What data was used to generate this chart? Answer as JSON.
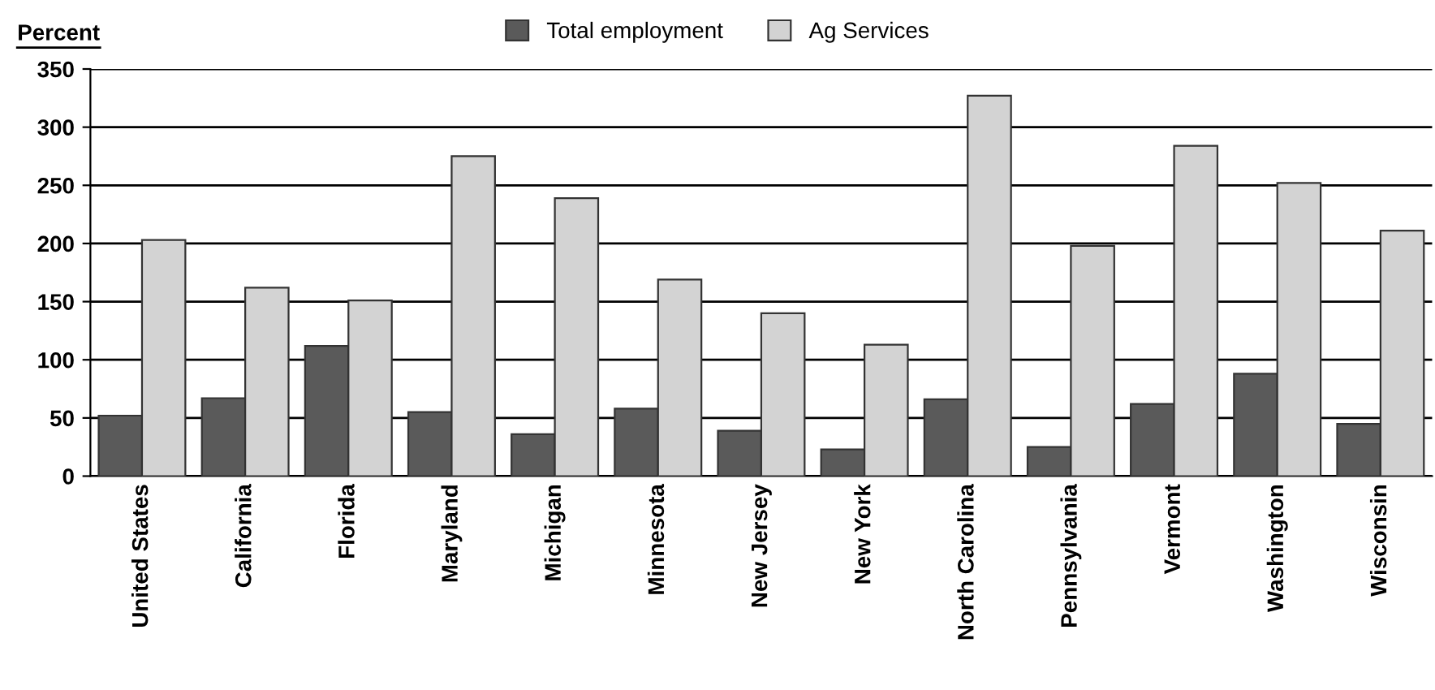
{
  "chart_data": {
    "type": "bar",
    "ylabel": "Percent",
    "categories": [
      "United States",
      "California",
      "Florida",
      "Maryland",
      "Michigan",
      "Minnesota",
      "New Jersey",
      "New York",
      "North Carolina",
      "Pennsylvania",
      "Vermont",
      "Washington",
      "Wisconsin"
    ],
    "series": [
      {
        "name": "Total employment",
        "color": "#5a5a5a",
        "values": [
          52,
          67,
          112,
          55,
          36,
          58,
          39,
          23,
          66,
          25,
          62,
          88,
          45
        ]
      },
      {
        "name": "Ag Services",
        "color": "#d3d3d3",
        "values": [
          203,
          162,
          151,
          275,
          239,
          169,
          140,
          113,
          327,
          198,
          284,
          252,
          211
        ]
      }
    ],
    "ylim": [
      0,
      350
    ],
    "yticks": [
      0,
      50,
      100,
      150,
      200,
      250,
      300,
      350
    ],
    "grid": "y",
    "legend": "top"
  }
}
